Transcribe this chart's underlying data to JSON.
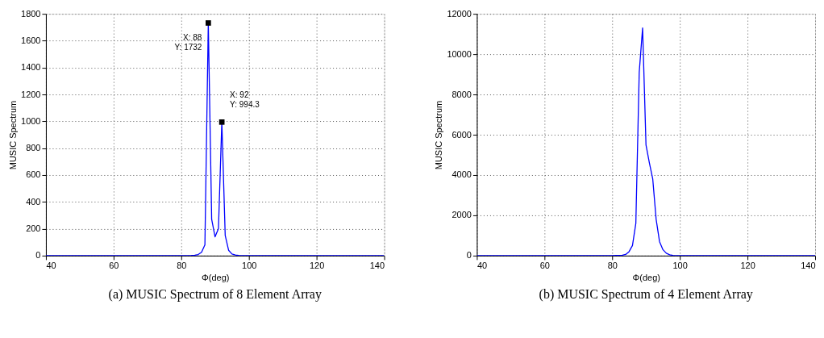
{
  "chart_data": [
    {
      "type": "line",
      "xlabel": "Φ(deg)",
      "ylabel": "MUSIC Spectrum",
      "xlim": [
        40,
        140
      ],
      "xticks": [
        40,
        60,
        80,
        100,
        120,
        140
      ],
      "ylim": [
        0,
        1800
      ],
      "yticks": [
        0,
        200,
        400,
        600,
        800,
        1000,
        1200,
        1400,
        1600,
        1800
      ],
      "grid": true,
      "series": [
        {
          "color": "#0000ff",
          "x": [
            40,
            60,
            80,
            83,
            84,
            85,
            86,
            87,
            88,
            89,
            90,
            91,
            92,
            93,
            94,
            95,
            96,
            97,
            100,
            120,
            140
          ],
          "values": [
            0,
            0,
            0,
            1,
            3,
            8,
            25,
            80,
            1732,
            270,
            140,
            200,
            994.3,
            150,
            40,
            12,
            4,
            1,
            0,
            0,
            0
          ]
        }
      ],
      "annotations": [
        {
          "text": "X: 88\nY: 1732",
          "x": 88,
          "y": 1732
        },
        {
          "text": "X: 92\nY: 994.3",
          "x": 92,
          "y": 994.3
        },
        "(a) MUSIC Spectrum of 8 Element Array"
      ]
    },
    {
      "type": "line",
      "xlabel": "Φ(deg)",
      "ylabel": "MUSIC Spectrum",
      "xlim": [
        40,
        140
      ],
      "xticks": [
        40,
        60,
        80,
        100,
        120,
        140
      ],
      "ylim": [
        0,
        12000
      ],
      "yticks": [
        0,
        2000,
        4000,
        6000,
        8000,
        10000,
        12000
      ],
      "grid": true,
      "series": [
        {
          "color": "#0000ff",
          "x": [
            40,
            60,
            80,
            83,
            84,
            85,
            86,
            87,
            88,
            89,
            90,
            91,
            92,
            93,
            94,
            95,
            96,
            97,
            98,
            100,
            120,
            140
          ],
          "values": [
            0,
            0,
            0,
            20,
            60,
            200,
            500,
            1600,
            9100,
            11300,
            5500,
            4600,
            3800,
            1800,
            700,
            300,
            120,
            40,
            10,
            0,
            0,
            0
          ]
        }
      ],
      "annotations": [
        "(b) MUSIC Spectrum of 4 Element Array"
      ]
    }
  ]
}
